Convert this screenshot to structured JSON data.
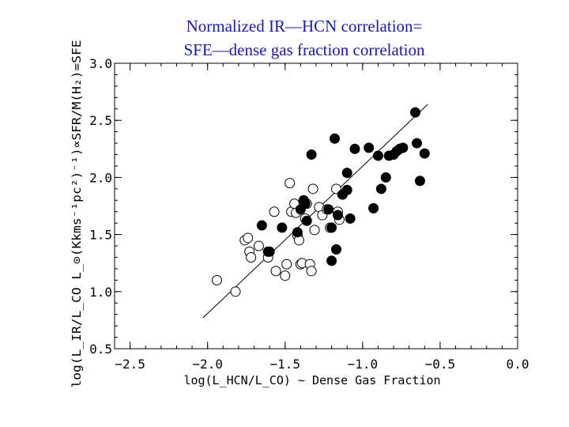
{
  "title_lines": [
    "Normalized IR—HCN correlation=",
    "SFE—dense gas fraction correlation"
  ],
  "chart_data": {
    "type": "scatter",
    "xlabel": "log(L_HCN/L_CO) ∼ Dense Gas Fraction",
    "ylabel": "log(L_IR/L_CO  L_⊙(Kkms⁻¹pc²)⁻¹)∝SFR/M(H₂)=SFE",
    "xlim": [
      -2.6,
      0.0
    ],
    "ylim": [
      0.5,
      3.0
    ],
    "xticks": [
      -2.5,
      -2.0,
      -1.5,
      -1.0,
      -0.5,
      0.0
    ],
    "xtick_labels": [
      "−2.5",
      "−2.0",
      "−1.5",
      "−1.0",
      "−0.5",
      "0.0"
    ],
    "yticks": [
      0.5,
      1.0,
      1.5,
      2.0,
      2.5,
      3.0
    ],
    "ytick_labels": [
      "0.5",
      "1.0",
      "1.5",
      "2.0",
      "2.5",
      "3.0"
    ],
    "grid": false,
    "fit_line": {
      "x": [
        -2.03,
        -0.58
      ],
      "y": [
        0.77,
        2.64
      ]
    },
    "series": [
      {
        "marker": "open-circle",
        "points": [
          [
            -1.94,
            1.1
          ],
          [
            -1.82,
            1.0
          ],
          [
            -1.76,
            1.45
          ],
          [
            -1.74,
            1.47
          ],
          [
            -1.73,
            1.35
          ],
          [
            -1.72,
            1.3
          ],
          [
            -1.67,
            1.4
          ],
          [
            -1.61,
            1.3
          ],
          [
            -1.57,
            1.7
          ],
          [
            -1.56,
            1.18
          ],
          [
            -1.5,
            1.14
          ],
          [
            -1.49,
            1.24
          ],
          [
            -1.47,
            1.95
          ],
          [
            -1.46,
            1.7
          ],
          [
            -1.44,
            1.77
          ],
          [
            -1.43,
            1.69
          ],
          [
            -1.42,
            1.49
          ],
          [
            -1.41,
            1.45
          ],
          [
            -1.4,
            1.24
          ],
          [
            -1.39,
            1.25
          ],
          [
            -1.37,
            1.64
          ],
          [
            -1.36,
            1.77
          ],
          [
            -1.34,
            1.24
          ],
          [
            -1.33,
            1.18
          ],
          [
            -1.32,
            1.9
          ],
          [
            -1.31,
            1.54
          ],
          [
            -1.28,
            1.74
          ],
          [
            -1.26,
            1.67
          ],
          [
            -1.23,
            1.72
          ],
          [
            -1.21,
            1.56
          ],
          [
            -1.17,
            1.9
          ],
          [
            -1.16,
            1.7
          ],
          [
            -1.15,
            1.63
          ],
          [
            -1.13,
            1.85
          ]
        ]
      },
      {
        "marker": "filled-circle",
        "points": [
          [
            -1.65,
            1.58
          ],
          [
            -1.61,
            1.35
          ],
          [
            -1.6,
            1.35
          ],
          [
            -1.52,
            1.56
          ],
          [
            -1.42,
            1.52
          ],
          [
            -1.4,
            1.72
          ],
          [
            -1.38,
            1.8
          ],
          [
            -1.37,
            1.77
          ],
          [
            -1.36,
            1.62
          ],
          [
            -1.33,
            2.2
          ],
          [
            -1.22,
            1.72
          ],
          [
            -1.2,
            1.56
          ],
          [
            -1.2,
            1.27
          ],
          [
            -1.18,
            2.34
          ],
          [
            -1.17,
            1.37
          ],
          [
            -1.16,
            1.67
          ],
          [
            -1.13,
            1.85
          ],
          [
            -1.1,
            1.89
          ],
          [
            -1.1,
            2.04
          ],
          [
            -1.08,
            1.64
          ],
          [
            -1.05,
            2.25
          ],
          [
            -0.96,
            2.26
          ],
          [
            -0.93,
            1.73
          ],
          [
            -0.9,
            2.19
          ],
          [
            -0.88,
            1.9
          ],
          [
            -0.85,
            2.0
          ],
          [
            -0.83,
            2.19
          ],
          [
            -0.8,
            2.2
          ],
          [
            -0.78,
            2.23
          ],
          [
            -0.76,
            2.25
          ],
          [
            -0.74,
            2.26
          ],
          [
            -0.66,
            2.57
          ],
          [
            -0.65,
            2.3
          ],
          [
            -0.63,
            1.97
          ],
          [
            -0.6,
            2.21
          ]
        ]
      }
    ]
  }
}
